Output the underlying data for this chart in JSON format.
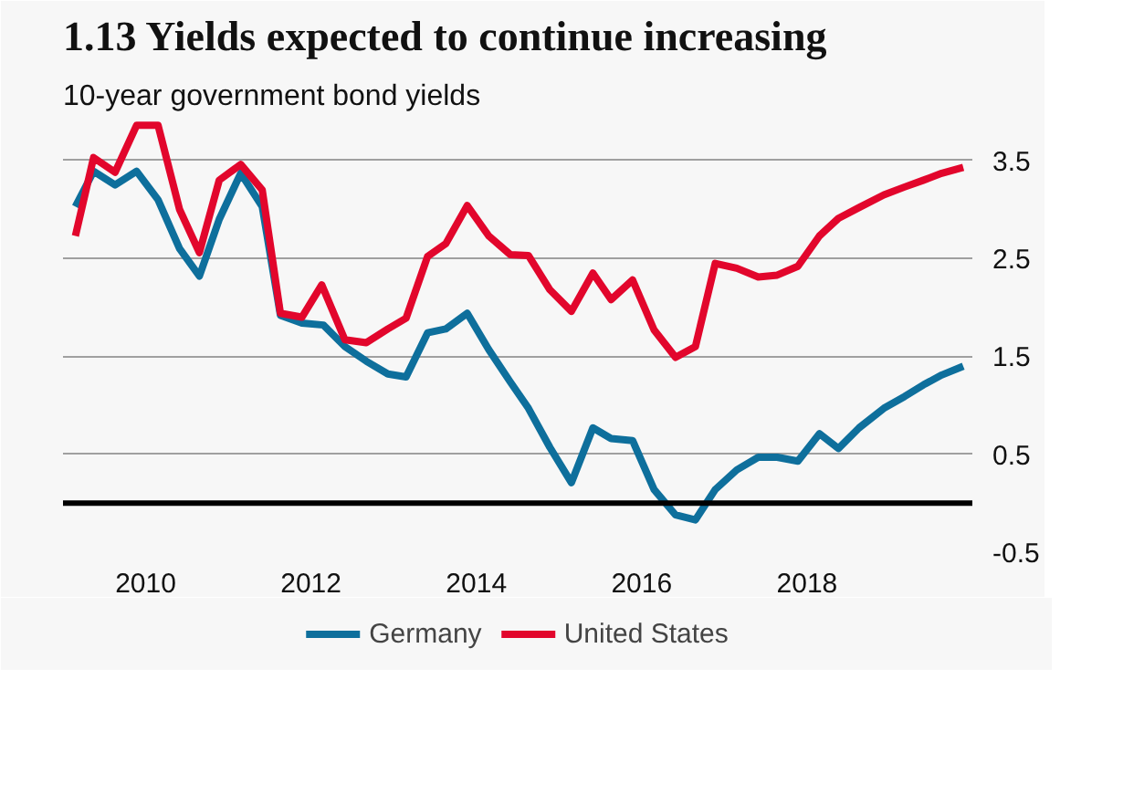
{
  "chart_data": {
    "type": "line",
    "title": "1.13 Yields expected to continue increasing",
    "subtitle": "10-year government bond yields",
    "series": [
      {
        "name": "Germany",
        "color": "#0e6f9c",
        "x": [
          2009.15,
          2009.37,
          2009.63,
          2009.89,
          2010.15,
          2010.41,
          2010.65,
          2010.89,
          2011.15,
          2011.41,
          2011.63,
          2011.89,
          2012.15,
          2012.41,
          2012.67,
          2012.93,
          2013.15,
          2013.41,
          2013.63,
          2013.89,
          2014.15,
          2014.41,
          2014.63,
          2014.89,
          2015.15,
          2015.41,
          2015.63,
          2015.89,
          2016.15,
          2016.41,
          2016.65,
          2016.89,
          2017.15,
          2017.41,
          2017.64,
          2017.89,
          2018.15,
          2018.38,
          2018.63,
          2018.93,
          2019.18,
          2019.41,
          2019.63,
          2019.89
        ],
        "values": [
          3.03,
          3.39,
          3.25,
          3.39,
          3.1,
          2.6,
          2.32,
          2.9,
          3.37,
          3.03,
          1.92,
          1.84,
          1.82,
          1.6,
          1.45,
          1.32,
          1.29,
          1.74,
          1.78,
          1.94,
          1.57,
          1.24,
          0.97,
          0.57,
          0.21,
          0.77,
          0.66,
          0.64,
          0.14,
          -0.12,
          -0.17,
          0.14,
          0.34,
          0.47,
          0.47,
          0.43,
          0.71,
          0.56,
          0.77,
          0.97,
          1.09,
          1.21,
          1.31,
          1.4
        ]
      },
      {
        "name": "United States",
        "color": "#e2062c",
        "x": [
          2009.15,
          2009.37,
          2009.63,
          2009.89,
          2010.15,
          2010.41,
          2010.65,
          2010.89,
          2011.15,
          2011.41,
          2011.63,
          2011.89,
          2012.13,
          2012.41,
          2012.67,
          2012.93,
          2013.15,
          2013.41,
          2013.63,
          2013.89,
          2014.15,
          2014.41,
          2014.63,
          2014.89,
          2015.15,
          2015.41,
          2015.63,
          2015.89,
          2016.15,
          2016.41,
          2016.65,
          2016.89,
          2017.15,
          2017.41,
          2017.64,
          2017.89,
          2018.15,
          2018.38,
          2018.63,
          2018.93,
          2019.18,
          2019.41,
          2019.63,
          2019.89
        ],
        "values": [
          2.73,
          3.53,
          3.38,
          3.86,
          3.86,
          3.0,
          2.56,
          3.3,
          3.46,
          3.2,
          1.94,
          1.9,
          2.23,
          1.67,
          1.64,
          1.78,
          1.89,
          2.52,
          2.65,
          3.04,
          2.73,
          2.54,
          2.53,
          2.18,
          1.96,
          2.35,
          2.08,
          2.28,
          1.77,
          1.49,
          1.6,
          2.45,
          2.4,
          2.31,
          2.33,
          2.42,
          2.73,
          2.91,
          3.02,
          3.15,
          3.23,
          3.3,
          3.37,
          3.43
        ]
      }
    ],
    "xlim": [
      2009,
      2020
    ],
    "xticks": [
      2010,
      2012,
      2014,
      2016,
      2018
    ],
    "ylim": [
      -0.5,
      3.9
    ],
    "yticks": [
      -0.5,
      0.5,
      1.5,
      2.5,
      3.5
    ],
    "ref_lines": [
      {
        "axis": "y",
        "value": 0,
        "color": "#000000"
      }
    ],
    "grid": "y",
    "legend": "bottom",
    "line_style": "solid"
  }
}
